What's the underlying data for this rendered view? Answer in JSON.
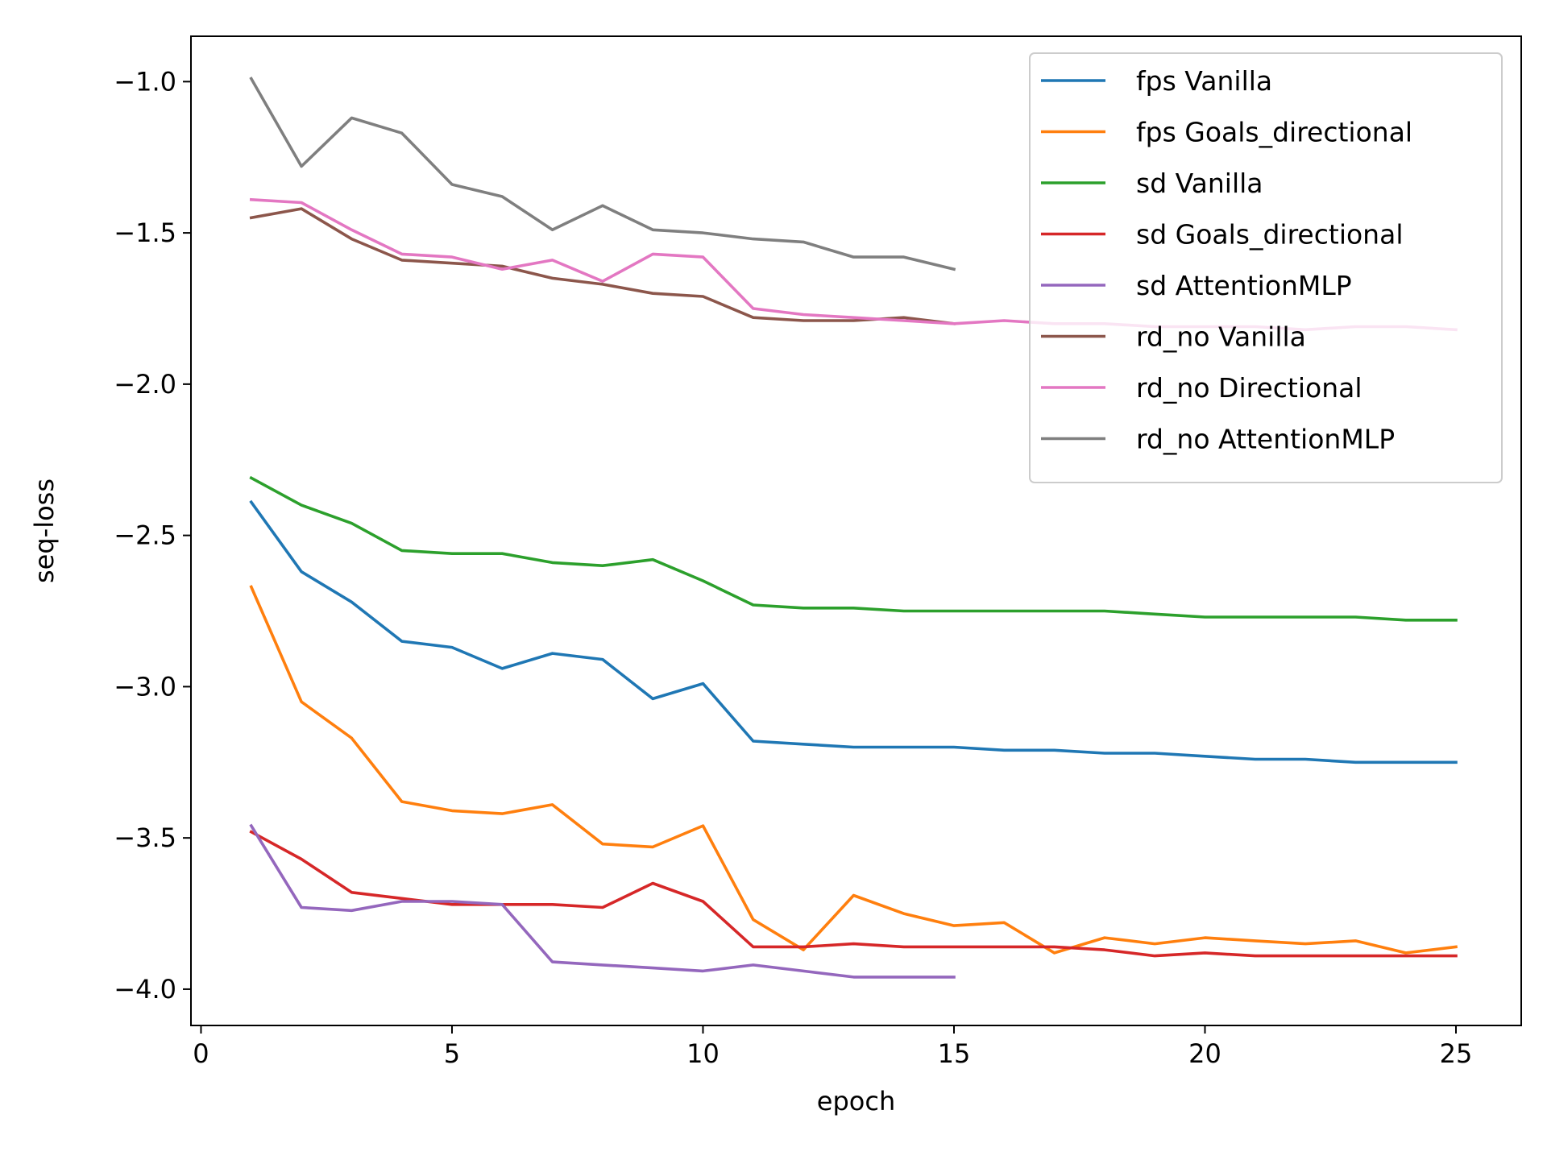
{
  "chart_data": {
    "type": "line",
    "title": "",
    "xlabel": "epoch",
    "ylabel": "seq-loss",
    "xlim": [
      -0.2,
      26.3
    ],
    "ylim": [
      -4.12,
      -0.85
    ],
    "xticks": [
      0,
      5,
      10,
      15,
      20,
      25
    ],
    "xtick_labels": [
      "0",
      "5",
      "10",
      "15",
      "20",
      "25"
    ],
    "yticks": [
      -1.0,
      -1.5,
      -2.0,
      -2.5,
      -3.0,
      -3.5,
      -4.0
    ],
    "ytick_labels": [
      "−1.0",
      "−1.5",
      "−2.0",
      "−2.5",
      "−3.0",
      "−3.5",
      "−4.0"
    ],
    "grid": false,
    "legend_position": "top-right",
    "series": [
      {
        "name": "fps Vanilla",
        "color": "#1f77b4",
        "x": [
          1,
          2,
          3,
          4,
          5,
          6,
          7,
          8,
          9,
          10,
          11,
          12,
          13,
          14,
          15,
          16,
          17,
          18,
          19,
          20,
          21,
          22,
          23,
          24,
          25
        ],
        "y": [
          -2.39,
          -2.62,
          -2.72,
          -2.85,
          -2.87,
          -2.94,
          -2.89,
          -2.91,
          -3.04,
          -2.99,
          -3.18,
          -3.19,
          -3.2,
          -3.2,
          -3.2,
          -3.21,
          -3.21,
          -3.22,
          -3.22,
          -3.23,
          -3.24,
          -3.24,
          -3.25,
          -3.25,
          -3.25
        ]
      },
      {
        "name": "fps Goals_directional",
        "color": "#ff7f0e",
        "x": [
          1,
          2,
          3,
          4,
          5,
          6,
          7,
          8,
          9,
          10,
          11,
          12,
          13,
          14,
          15,
          16,
          17,
          18,
          19,
          20,
          21,
          22,
          23,
          24,
          25
        ],
        "y": [
          -2.67,
          -3.05,
          -3.17,
          -3.38,
          -3.41,
          -3.42,
          -3.39,
          -3.52,
          -3.53,
          -3.46,
          -3.77,
          -3.87,
          -3.69,
          -3.75,
          -3.79,
          -3.78,
          -3.88,
          -3.83,
          -3.85,
          -3.83,
          -3.84,
          -3.85,
          -3.84,
          -3.88,
          -3.86
        ]
      },
      {
        "name": "sd Vanilla",
        "color": "#2ca02c",
        "x": [
          1,
          2,
          3,
          4,
          5,
          6,
          7,
          8,
          9,
          10,
          11,
          12,
          13,
          14,
          15,
          16,
          17,
          18,
          19,
          20,
          21,
          22,
          23,
          24,
          25
        ],
        "y": [
          -2.31,
          -2.4,
          -2.46,
          -2.55,
          -2.56,
          -2.56,
          -2.59,
          -2.6,
          -2.58,
          -2.65,
          -2.73,
          -2.74,
          -2.74,
          -2.75,
          -2.75,
          -2.75,
          -2.75,
          -2.75,
          -2.76,
          -2.77,
          -2.77,
          -2.77,
          -2.77,
          -2.78,
          -2.78
        ]
      },
      {
        "name": "sd Goals_directional",
        "color": "#d62728",
        "x": [
          1,
          2,
          3,
          4,
          5,
          6,
          7,
          8,
          9,
          10,
          11,
          12,
          13,
          14,
          15,
          16,
          17,
          18,
          19,
          20,
          21,
          22,
          23,
          24,
          25
        ],
        "y": [
          -3.48,
          -3.57,
          -3.68,
          -3.7,
          -3.72,
          -3.72,
          -3.72,
          -3.73,
          -3.65,
          -3.71,
          -3.86,
          -3.86,
          -3.85,
          -3.86,
          -3.86,
          -3.86,
          -3.86,
          -3.87,
          -3.89,
          -3.88,
          -3.89,
          -3.89,
          -3.89,
          -3.89,
          -3.89
        ]
      },
      {
        "name": "sd AttentionMLP",
        "color": "#9467bd",
        "x": [
          1,
          2,
          3,
          4,
          5,
          6,
          7,
          8,
          9,
          10,
          11,
          12,
          13,
          14,
          15
        ],
        "y": [
          -3.46,
          -3.73,
          -3.74,
          -3.71,
          -3.71,
          -3.72,
          -3.91,
          -3.92,
          -3.93,
          -3.94,
          -3.92,
          -3.94,
          -3.96,
          -3.96,
          -3.96
        ]
      },
      {
        "name": "rd_no Vanilla",
        "color": "#8c564b",
        "x": [
          1,
          2,
          3,
          4,
          5,
          6,
          7,
          8,
          9,
          10,
          11,
          12,
          13,
          14,
          15
        ],
        "y": [
          -1.45,
          -1.42,
          -1.52,
          -1.59,
          -1.6,
          -1.61,
          -1.65,
          -1.67,
          -1.7,
          -1.71,
          -1.78,
          -1.79,
          -1.79,
          -1.78,
          -1.8
        ]
      },
      {
        "name": "rd_no Directional",
        "color": "#e377c2",
        "x": [
          1,
          2,
          3,
          4,
          5,
          6,
          7,
          8,
          9,
          10,
          11,
          12,
          13,
          14,
          15,
          16,
          17,
          18,
          19,
          20,
          21,
          22,
          23,
          24,
          25
        ],
        "y": [
          -1.39,
          -1.4,
          -1.49,
          -1.57,
          -1.58,
          -1.62,
          -1.59,
          -1.66,
          -1.57,
          -1.58,
          -1.75,
          -1.77,
          -1.78,
          -1.79,
          -1.8,
          -1.79,
          -1.8,
          -1.8,
          -1.81,
          -1.81,
          -1.81,
          -1.82,
          -1.81,
          -1.81,
          -1.82
        ]
      },
      {
        "name": "rd_no AttentionMLP",
        "color": "#7f7f7f",
        "x": [
          1,
          2,
          3,
          4,
          5,
          6,
          7,
          8,
          9,
          10,
          11,
          12,
          13,
          14,
          15
        ],
        "y": [
          -0.99,
          -1.28,
          -1.12,
          -1.17,
          -1.34,
          -1.38,
          -1.49,
          -1.41,
          -1.49,
          -1.5,
          -1.52,
          -1.53,
          -1.58,
          -1.58,
          -1.62
        ]
      }
    ]
  }
}
